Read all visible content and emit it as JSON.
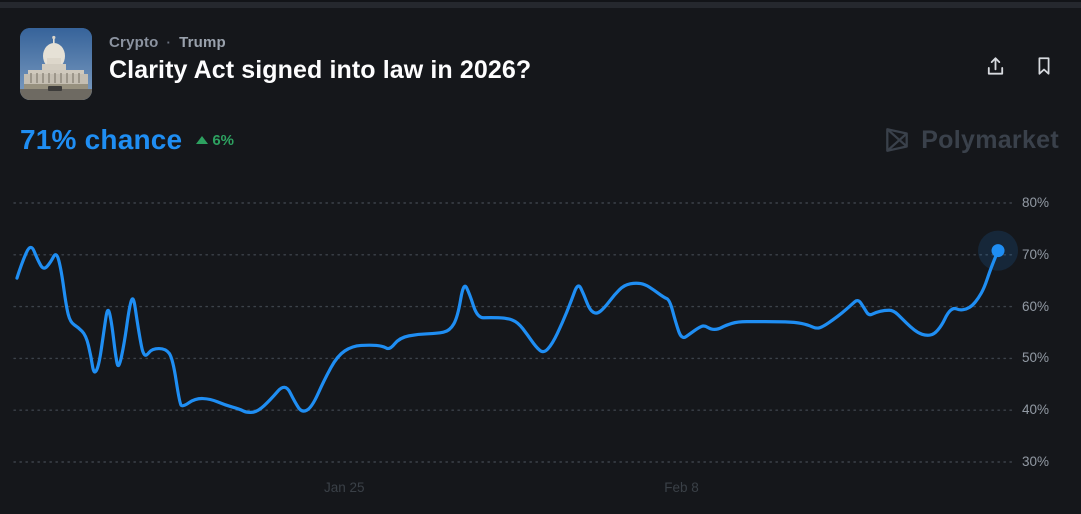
{
  "header": {
    "categories": [
      "Crypto",
      "Trump"
    ],
    "separator": "·",
    "title": "Clarity Act signed into law in 2026?",
    "image_alt": "US Capitol building"
  },
  "actions": {
    "share": "share",
    "bookmark": "bookmark"
  },
  "price": {
    "chance_label": "71% chance",
    "delta": "6%",
    "delta_direction": "up"
  },
  "watermark": {
    "label": "Polymarket"
  },
  "colors": {
    "accent_blue": "#1f8ef3",
    "positive_green": "#2da160",
    "background": "#15171b",
    "watermark_gray": "#3a414b",
    "grid_dot": "#3c424a"
  },
  "chart_data": {
    "type": "line",
    "title": "Probability over time",
    "legend": [],
    "grid": "dotted-horizontal",
    "line_color": "#1f8ef3",
    "last_value": 71,
    "ylim": [
      27,
      83
    ],
    "yticks": [
      {
        "value": 80,
        "label": "80%"
      },
      {
        "value": 70,
        "label": "70%"
      },
      {
        "value": 60,
        "label": "60%"
      },
      {
        "value": 50,
        "label": "50%"
      },
      {
        "value": 40,
        "label": "40%"
      },
      {
        "value": 30,
        "label": "30%"
      }
    ],
    "xticks": [
      {
        "label": "Jan 25",
        "pos": 0.335
      },
      {
        "label": "Feb 8",
        "pos": 0.677
      }
    ],
    "points": [
      [
        0.003,
        65.5
      ],
      [
        0.008,
        68.5
      ],
      [
        0.017,
        72.3
      ],
      [
        0.024,
        69.0
      ],
      [
        0.03,
        67.0
      ],
      [
        0.037,
        68.5
      ],
      [
        0.043,
        70.7
      ],
      [
        0.048,
        67.0
      ],
      [
        0.053,
        60.0
      ],
      [
        0.057,
        57.0
      ],
      [
        0.065,
        56.0
      ],
      [
        0.073,
        54.5
      ],
      [
        0.078,
        50.5
      ],
      [
        0.081,
        46.8
      ],
      [
        0.086,
        48.5
      ],
      [
        0.091,
        55.0
      ],
      [
        0.095,
        60.3
      ],
      [
        0.099,
        57.0
      ],
      [
        0.103,
        50.5
      ],
      [
        0.106,
        47.7
      ],
      [
        0.112,
        53.0
      ],
      [
        0.117,
        60.0
      ],
      [
        0.121,
        62.3
      ],
      [
        0.125,
        57.0
      ],
      [
        0.129,
        52.5
      ],
      [
        0.131,
        51.0
      ],
      [
        0.134,
        50.4
      ],
      [
        0.14,
        51.9
      ],
      [
        0.154,
        51.9
      ],
      [
        0.161,
        50.0
      ],
      [
        0.168,
        41.3
      ],
      [
        0.171,
        40.6
      ],
      [
        0.184,
        42.3
      ],
      [
        0.199,
        42.2
      ],
      [
        0.214,
        41.0
      ],
      [
        0.229,
        40.2
      ],
      [
        0.236,
        39.5
      ],
      [
        0.247,
        39.7
      ],
      [
        0.26,
        42.0
      ],
      [
        0.275,
        45.3
      ],
      [
        0.285,
        41.5
      ],
      [
        0.292,
        39.5
      ],
      [
        0.302,
        40.5
      ],
      [
        0.315,
        46.0
      ],
      [
        0.328,
        50.5
      ],
      [
        0.343,
        52.4
      ],
      [
        0.361,
        52.6
      ],
      [
        0.374,
        52.4
      ],
      [
        0.381,
        51.6
      ],
      [
        0.391,
        54.0
      ],
      [
        0.41,
        54.7
      ],
      [
        0.429,
        54.8
      ],
      [
        0.442,
        55.3
      ],
      [
        0.45,
        58.0
      ],
      [
        0.456,
        64.8
      ],
      [
        0.462,
        62.5
      ],
      [
        0.47,
        57.8
      ],
      [
        0.483,
        57.9
      ],
      [
        0.5,
        57.8
      ],
      [
        0.511,
        57.0
      ],
      [
        0.521,
        54.5
      ],
      [
        0.529,
        52.3
      ],
      [
        0.537,
        50.9
      ],
      [
        0.546,
        52.8
      ],
      [
        0.556,
        56.8
      ],
      [
        0.565,
        61.0
      ],
      [
        0.572,
        64.7
      ],
      [
        0.578,
        62.3
      ],
      [
        0.584,
        59.3
      ],
      [
        0.591,
        58.5
      ],
      [
        0.599,
        59.8
      ],
      [
        0.609,
        62.3
      ],
      [
        0.619,
        64.2
      ],
      [
        0.631,
        64.6
      ],
      [
        0.64,
        64.3
      ],
      [
        0.649,
        63.2
      ],
      [
        0.659,
        61.8
      ],
      [
        0.665,
        61.3
      ],
      [
        0.671,
        57.0
      ],
      [
        0.677,
        53.6
      ],
      [
        0.686,
        54.8
      ],
      [
        0.694,
        55.9
      ],
      [
        0.7,
        56.4
      ],
      [
        0.707,
        55.6
      ],
      [
        0.714,
        55.6
      ],
      [
        0.722,
        56.4
      ],
      [
        0.734,
        57.1
      ],
      [
        0.752,
        57.1
      ],
      [
        0.772,
        57.1
      ],
      [
        0.792,
        57.0
      ],
      [
        0.805,
        56.5
      ],
      [
        0.814,
        55.7
      ],
      [
        0.821,
        56.2
      ],
      [
        0.831,
        57.5
      ],
      [
        0.84,
        58.8
      ],
      [
        0.849,
        60.3
      ],
      [
        0.856,
        61.5
      ],
      [
        0.862,
        59.8
      ],
      [
        0.867,
        58.2
      ],
      [
        0.874,
        58.9
      ],
      [
        0.883,
        59.3
      ],
      [
        0.892,
        59.3
      ],
      [
        0.901,
        57.6
      ],
      [
        0.909,
        56.1
      ],
      [
        0.917,
        54.9
      ],
      [
        0.925,
        54.4
      ],
      [
        0.933,
        54.6
      ],
      [
        0.941,
        56.4
      ],
      [
        0.947,
        58.8
      ],
      [
        0.953,
        59.8
      ],
      [
        0.959,
        59.3
      ],
      [
        0.966,
        59.5
      ],
      [
        0.972,
        60.2
      ],
      [
        0.978,
        61.6
      ],
      [
        0.984,
        63.6
      ],
      [
        0.99,
        67.0
      ],
      [
        0.995,
        69.4
      ],
      [
        0.998,
        70.8
      ]
    ]
  }
}
